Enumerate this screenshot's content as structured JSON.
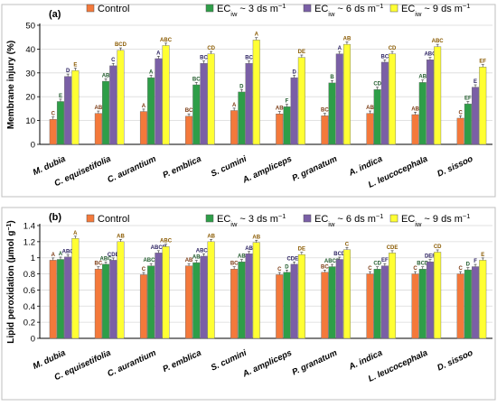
{
  "colors": {
    "control": "#F4793B",
    "ec3": "#2E9E48",
    "ec6": "#7A5FA6",
    "ec9": "#FFFF33",
    "letters_control": "#7B3A12",
    "letters_ec3": "#1F5A2B",
    "letters_ec6": "#2A2060",
    "letters_ec9": "#8A5A00"
  },
  "legend": {
    "control": "Control",
    "ec3": {
      "prefix": "EC",
      "sub": "iw",
      "suffix": " ~ 3 ds m",
      "sup": "−1"
    },
    "ec6": {
      "prefix": "EC",
      "sub": "iw",
      "suffix": " ~ 6 ds m",
      "sup": "−1"
    },
    "ec9": {
      "prefix": "EC",
      "sub": "iw",
      "suffix": " ~ 9 ds m",
      "sup": "−1"
    }
  },
  "chart_data": [
    {
      "type": "bar",
      "panel": "(a)",
      "ylabel": "Membrane injury (%)",
      "ylim": [
        0,
        50
      ],
      "yticks": [
        0,
        10,
        20,
        30,
        40,
        50
      ],
      "grid": true,
      "legend_position": "top",
      "categories": [
        "M. dubia",
        "C. equisetifolia",
        "C. aurantium",
        "P. emblica",
        "S. cumini",
        "A. ampliceps",
        "P. granatum",
        "A. indica",
        "L. leucocephala",
        "D. sissoo"
      ],
      "series": [
        {
          "name": "Control",
          "values": [
            10.5,
            13.0,
            13.8,
            11.8,
            14.2,
            12.8,
            12.0,
            13.0,
            12.5,
            11.0
          ],
          "labels": [
            "C",
            "AB",
            "A",
            "BC",
            "A",
            "AB",
            "BC",
            "AB",
            "AB",
            "C"
          ]
        },
        {
          "name": "ECiw ~ 3 ds m−1",
          "values": [
            18.0,
            26.5,
            28.0,
            25.0,
            22.0,
            15.8,
            25.8,
            23.0,
            26.0,
            17.0
          ],
          "labels": [
            "E",
            "AB",
            "A",
            "BC",
            "D",
            "F",
            "B",
            "CD",
            "AB",
            "EF"
          ]
        },
        {
          "name": "ECiw ~ 6 ds m−1",
          "values": [
            28.5,
            33.0,
            36.0,
            34.0,
            34.0,
            28.0,
            38.0,
            34.5,
            35.5,
            24.0
          ],
          "labels": [
            "D",
            "C",
            "A",
            "BC",
            "BC",
            "D",
            "A",
            "BC",
            "ABC",
            "E"
          ]
        },
        {
          "name": "ECiw ~ 9 ds m−1",
          "values": [
            31.0,
            39.5,
            41.5,
            38.0,
            43.8,
            36.5,
            42.0,
            38.0,
            41.0,
            32.5
          ],
          "labels": [
            "E",
            "BCD",
            "ABC",
            "CD",
            "A",
            "DE",
            "AB",
            "CD",
            "ABC",
            "EF"
          ]
        }
      ]
    },
    {
      "type": "bar",
      "panel": "(b)",
      "ylabel": "Lipid peroxidation (µmol g",
      "ylabel_sup": "−1",
      "ylabel_end": ")",
      "ylim": [
        0,
        1.4
      ],
      "yticks": [
        0,
        0.2,
        0.4,
        0.6,
        0.8,
        1.0,
        1.2,
        1.4
      ],
      "ytick_labels": [
        "0",
        "0.2",
        "0.4",
        "0.6",
        "0.8",
        "1",
        "1.2",
        "1.4"
      ],
      "grid": true,
      "legend_position": "top",
      "categories": [
        "M. dubia",
        "C. equisetifolia",
        "C. aurantium",
        "P. emblica",
        "S. cumini",
        "A. ampliceps",
        "P. granatum",
        "A. indica",
        "L. leucocephala",
        "D. sissoo"
      ],
      "series": [
        {
          "name": "Control",
          "values": [
            0.97,
            0.86,
            0.79,
            0.9,
            0.86,
            0.79,
            0.82,
            0.8,
            0.8,
            0.8
          ],
          "labels": [
            "A",
            "BC",
            "C",
            "AB",
            "BC",
            "C",
            "BC",
            "C",
            "C",
            "C"
          ]
        },
        {
          "name": "ECiw ~ 3 ds m−1",
          "values": [
            0.98,
            0.92,
            0.9,
            0.94,
            0.95,
            0.82,
            0.89,
            0.86,
            0.86,
            0.85
          ],
          "labels": [
            "A",
            "ABC",
            "ABCD",
            "AB",
            "AB",
            "D",
            "ABCD",
            "CD",
            "BCD",
            "D"
          ]
        },
        {
          "name": "ECiw ~ 6 ds m−1",
          "values": [
            1.01,
            0.97,
            1.06,
            1.02,
            1.05,
            0.92,
            0.98,
            0.9,
            0.95,
            0.89
          ],
          "labels": [
            "ABC",
            "CDE",
            "ABCD",
            "ABCD",
            "AB",
            "CDEF",
            "BCD",
            "EF",
            "DEF",
            "F"
          ]
        },
        {
          "name": "ECiw ~ 9 ds m−1",
          "values": [
            1.24,
            1.2,
            1.14,
            1.2,
            1.19,
            1.04,
            1.1,
            1.06,
            1.07,
            0.97
          ],
          "labels": [
            "A",
            "AB",
            "ABC",
            "AB",
            "AB",
            "DE",
            "C",
            "CDE",
            "CD",
            "E"
          ]
        }
      ]
    }
  ]
}
